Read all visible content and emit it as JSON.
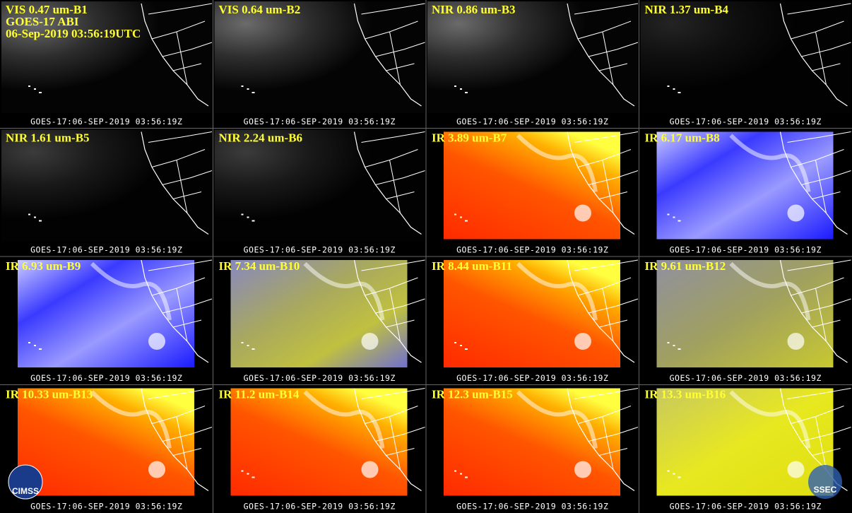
{
  "header": {
    "satellite": "GOES-17 ABI",
    "datetime": "06-Sep-2019 03:56:19UTC"
  },
  "panels": [
    {
      "label": "VIS 0.47 um-B1",
      "footer": "GOES-17:06-SEP-2019 03:56:19Z"
    },
    {
      "label": "VIS 0.64 um-B2",
      "footer": "GOES-17:06-SEP-2019 03:56:19Z"
    },
    {
      "label": "NIR 0.86 um-B3",
      "footer": "GOES-17:06-SEP-2019 03:56:19Z"
    },
    {
      "label": "NIR 1.37 um-B4",
      "footer": "GOES-17:06-SEP-2019 03:56:19Z"
    },
    {
      "label": "NIR 1.61 um-B5",
      "footer": "GOES-17:06-SEP-2019 03:56:19Z"
    },
    {
      "label": "NIR 2.24 um-B6",
      "footer": "GOES-17:06-SEP-2019 03:56:19Z"
    },
    {
      "label": "IR 3.89 um-B7",
      "footer": "GOES-17:06-SEP-2019 03:56:19Z"
    },
    {
      "label": "IR 6.17 um-B8",
      "footer": "GOES-17:06-SEP-2019 03:56:19Z"
    },
    {
      "label": "IR 6.93 um-B9",
      "footer": "GOES-17:06-SEP-2019 03:56:19Z"
    },
    {
      "label": "IR 7.34 um-B10",
      "footer": "GOES-17:06-SEP-2019 03:56:19Z"
    },
    {
      "label": "IR 8.44 um-B11",
      "footer": "GOES-17:06-SEP-2019 03:56:19Z"
    },
    {
      "label": "IR 9.61 um-B12",
      "footer": "GOES-17:06-SEP-2019 03:56:19Z"
    },
    {
      "label": "IR 10.33 um-B13",
      "footer": "GOES-17:06-SEP-2019 03:56:19Z"
    },
    {
      "label": "IR 11.2 um-B14",
      "footer": "GOES-17:06-SEP-2019 03:56:19Z"
    },
    {
      "label": "IR 12.3 um-B15",
      "footer": "GOES-17:06-SEP-2019 03:56:19Z"
    },
    {
      "label": "IR 13.3 um-B16",
      "footer": "GOES-17:06-SEP-2019 03:56:19Z"
    }
  ],
  "logos": {
    "left": "CIMSS",
    "right": "SSEC"
  }
}
